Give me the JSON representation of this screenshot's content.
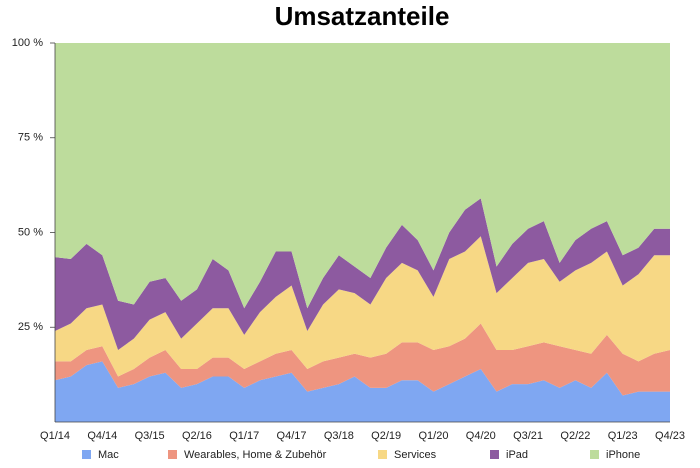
{
  "chart_data": {
    "type": "stacked-area",
    "title": "Umsatzanteile",
    "categories": [
      "Q1/14",
      null,
      null,
      "Q4/14",
      null,
      null,
      "Q3/15",
      null,
      null,
      "Q2/16",
      null,
      null,
      "Q1/17",
      null,
      null,
      "Q4/17",
      null,
      null,
      "Q3/18",
      null,
      null,
      "Q2/19",
      null,
      null,
      "Q1/20",
      null,
      null,
      "Q4/20",
      null,
      null,
      "Q3/21",
      null,
      null,
      "Q2/22",
      null,
      null,
      "Q1/23",
      null,
      null,
      "Q4/23"
    ],
    "series": [
      {
        "name": "Mac",
        "color": "#7fa7f2",
        "values": [
          11,
          12,
          15,
          16,
          9,
          10,
          12,
          13,
          9,
          10,
          12,
          12,
          9,
          11,
          12,
          13,
          8,
          9,
          10,
          12,
          9,
          9,
          11,
          11,
          8,
          10,
          12,
          14,
          8,
          10,
          10,
          11,
          9,
          11,
          9,
          13,
          7,
          8,
          8,
          8
        ]
      },
      {
        "name": "Wearables, Home & Zubehör",
        "color": "#ee9580",
        "values": [
          5,
          4,
          4,
          4,
          3,
          4,
          5,
          6,
          5,
          4,
          5,
          5,
          5,
          5,
          6,
          6,
          6,
          7,
          7,
          6,
          8,
          9,
          10,
          10,
          11,
          10,
          10,
          12,
          11,
          9,
          10,
          10,
          11,
          8,
          9,
          10,
          11,
          8,
          10,
          11
        ]
      },
      {
        "name": "Services",
        "color": "#f7d885",
        "values": [
          8,
          10,
          11,
          11,
          7,
          8,
          10,
          10,
          8,
          12,
          13,
          13,
          9,
          13,
          15,
          17,
          10,
          15,
          18,
          16,
          14,
          20,
          21,
          19,
          14,
          23,
          23,
          23,
          15,
          19,
          22,
          22,
          17,
          21,
          24,
          22,
          18,
          23,
          26,
          25
        ]
      },
      {
        "name": "iPad",
        "color": "#8d5aa0",
        "values": [
          19.5,
          17,
          17,
          13,
          13,
          9,
          10,
          9,
          10,
          9,
          13,
          10,
          7,
          8,
          12,
          9,
          6,
          7,
          9,
          7,
          7,
          8,
          10,
          8,
          7,
          7,
          11,
          10,
          7,
          9,
          9,
          10,
          5,
          8,
          9,
          8,
          8,
          7,
          7,
          7
        ]
      },
      {
        "name": "iPhone",
        "color": "#bddc9c",
        "values": [
          56.5,
          57,
          53,
          56,
          68,
          69,
          63,
          62,
          68,
          65,
          57,
          60,
          70,
          63,
          55,
          55,
          70,
          62,
          56,
          59,
          62,
          54,
          48,
          52,
          60,
          50,
          44,
          41,
          59,
          53,
          49,
          47,
          58,
          52,
          49,
          47,
          56,
          54,
          49,
          49
        ]
      }
    ],
    "ylim": [
      0,
      100
    ],
    "yticks": [
      {
        "value": 25,
        "label": "25 %"
      },
      {
        "value": 50,
        "label": "50 %"
      },
      {
        "value": 75,
        "label": "75 %"
      },
      {
        "value": 100,
        "label": "100 %"
      }
    ],
    "grid": false,
    "legend": "bottom"
  }
}
